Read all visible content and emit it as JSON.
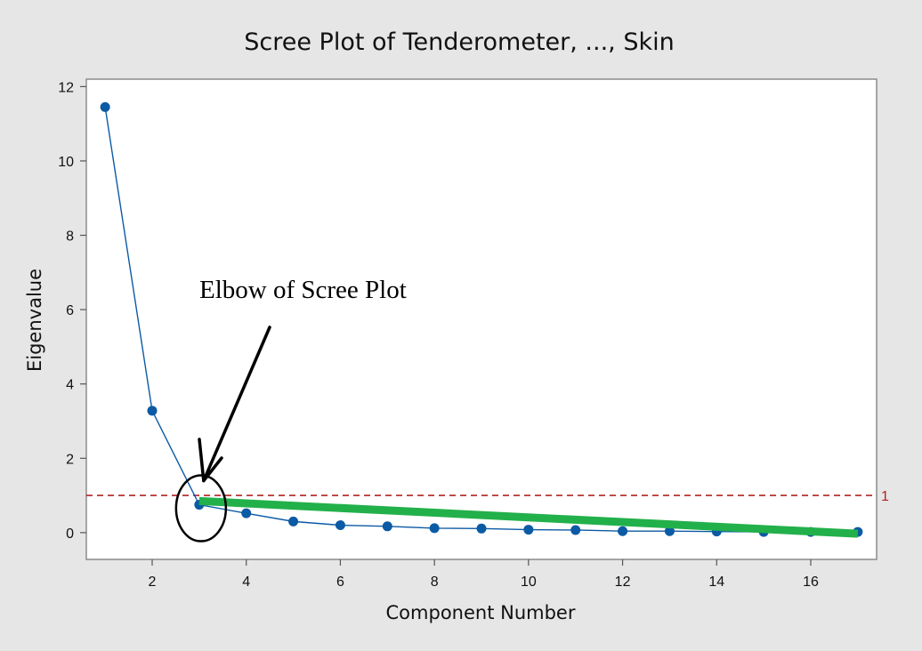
{
  "chart_data": {
    "type": "line",
    "title": "Scree Plot of Tenderometer, ..., Skin",
    "xlabel": "Component Number",
    "ylabel": "Eigenvalue",
    "xlim": [
      0.6,
      17.4
    ],
    "ylim": [
      -0.72,
      12.2
    ],
    "x_ticks": [
      2,
      4,
      6,
      8,
      10,
      12,
      14,
      16
    ],
    "y_ticks": [
      0,
      2,
      4,
      6,
      8,
      10,
      12
    ],
    "grid": false,
    "series": [
      {
        "x": [
          1,
          2,
          3,
          4,
          5,
          6,
          7,
          8,
          9,
          10,
          11,
          12,
          13,
          14,
          15,
          16,
          17
        ],
        "values": [
          11.45,
          3.28,
          0.75,
          0.52,
          0.3,
          0.2,
          0.17,
          0.12,
          0.11,
          0.08,
          0.07,
          0.04,
          0.04,
          0.03,
          0.02,
          0.02,
          0.02
        ],
        "color": "#0b5aa5"
      }
    ],
    "reference_line": {
      "y": 1,
      "label": "1",
      "color": "#b22222",
      "style": "dashed"
    },
    "annotations": {
      "elbow_text": "Elbow of Scree Plot",
      "elbow_point": {
        "x": 3,
        "y": 0.75
      },
      "trend_line": {
        "from": {
          "x": 3,
          "y": 0.85
        },
        "to": {
          "x": 17,
          "y": -0.03
        },
        "color": "#22b04a"
      }
    }
  }
}
